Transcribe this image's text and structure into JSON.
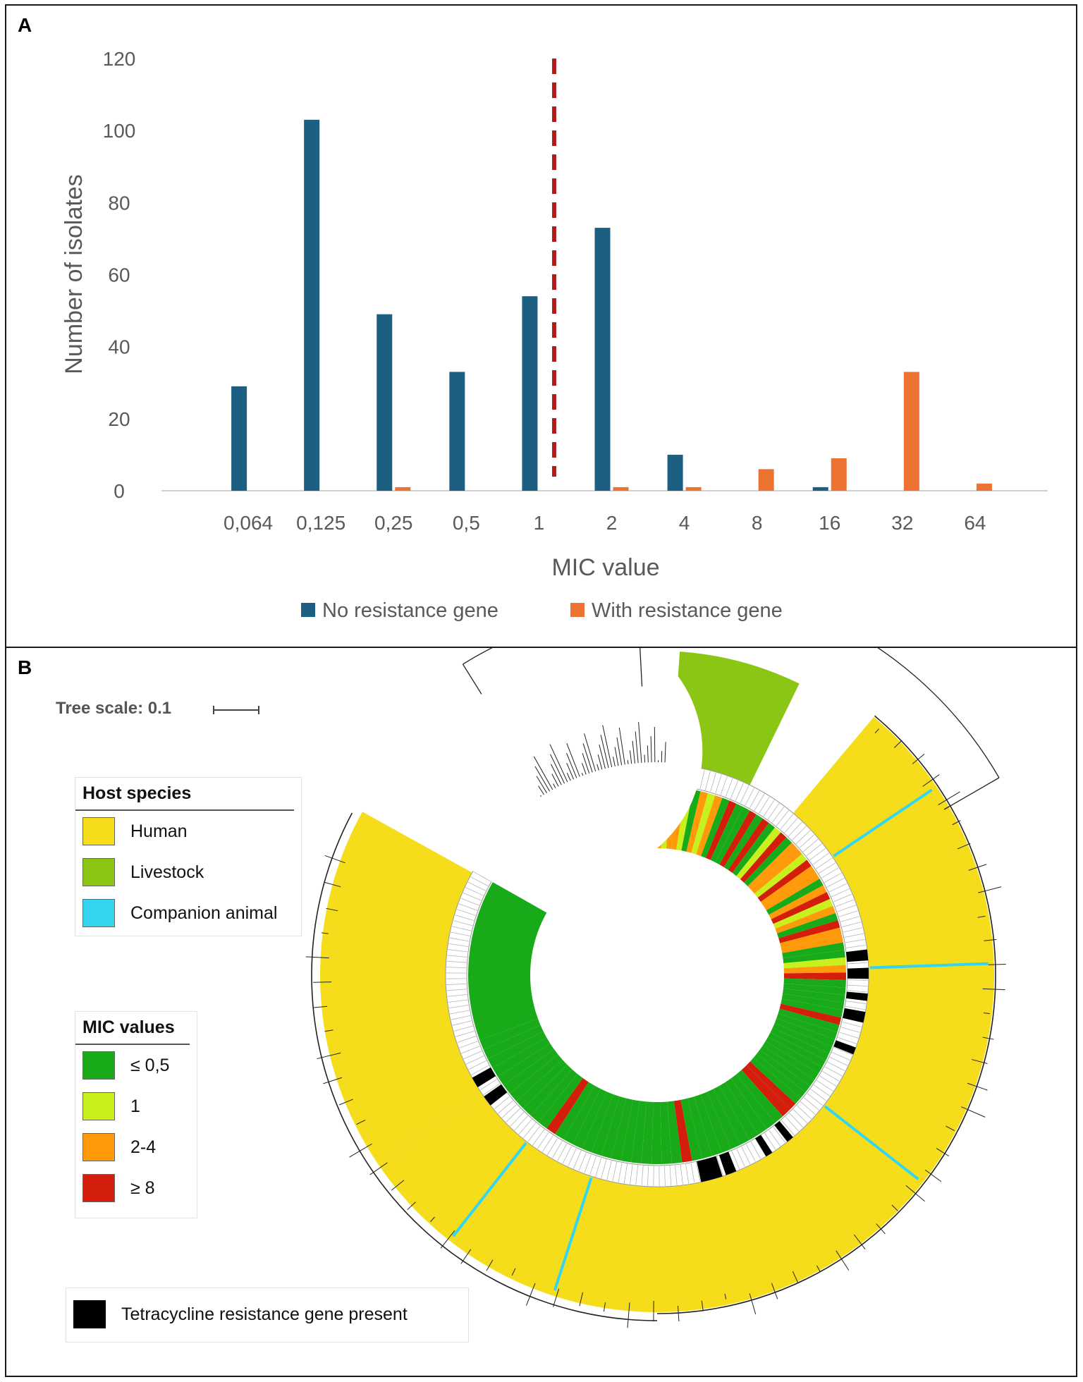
{
  "panel_a": {
    "label": "A"
  },
  "panel_b": {
    "label": "B"
  },
  "chart_data": {
    "type": "bar",
    "categories": [
      "0,064",
      "0,125",
      "0,25",
      "0,5",
      "1",
      "2",
      "4",
      "8",
      "16",
      "32",
      "64"
    ],
    "series": [
      {
        "name": "No resistance gene",
        "color": "#1c5f80",
        "values": [
          29,
          103,
          49,
          33,
          54,
          73,
          10,
          0,
          1,
          0,
          0
        ]
      },
      {
        "name": "With resistance gene",
        "color": "#ec7332",
        "values": [
          0,
          0,
          1,
          0,
          0,
          1,
          1,
          6,
          9,
          33,
          2
        ]
      }
    ],
    "title": "",
    "xlabel": "MIC value",
    "ylabel": "Number of isolates",
    "ylim": [
      0,
      120
    ],
    "yticks": [
      "0",
      "20",
      "40",
      "60",
      "80",
      "100",
      "120"
    ],
    "breakpoint": {
      "between": [
        "1",
        "2"
      ],
      "color": "#b01c1c",
      "style": "dashed"
    },
    "grid": false,
    "legend": "bottom"
  },
  "tree": {
    "scale_label": "Tree scale: 0.1",
    "host_legend": {
      "title": "Host species",
      "items": [
        {
          "label": "Human",
          "color": "#f6dd1c"
        },
        {
          "label": "Livestock",
          "color": "#8cc615"
        },
        {
          "label": "Companion animal",
          "color": "#33d5f0"
        }
      ]
    },
    "mic_legend": {
      "title": "MIC values",
      "items": [
        {
          "label": "≤ 0,5",
          "color": "#19aa19"
        },
        {
          "label": "1",
          "color": "#c8f01c"
        },
        {
          "label": "2-4",
          "color": "#ff9a0a"
        },
        {
          "label": "≥ 8",
          "color": "#d21e0a"
        }
      ]
    },
    "gene_legend": {
      "label": "Tetracycline resistance gene present",
      "color": "#000000"
    }
  }
}
